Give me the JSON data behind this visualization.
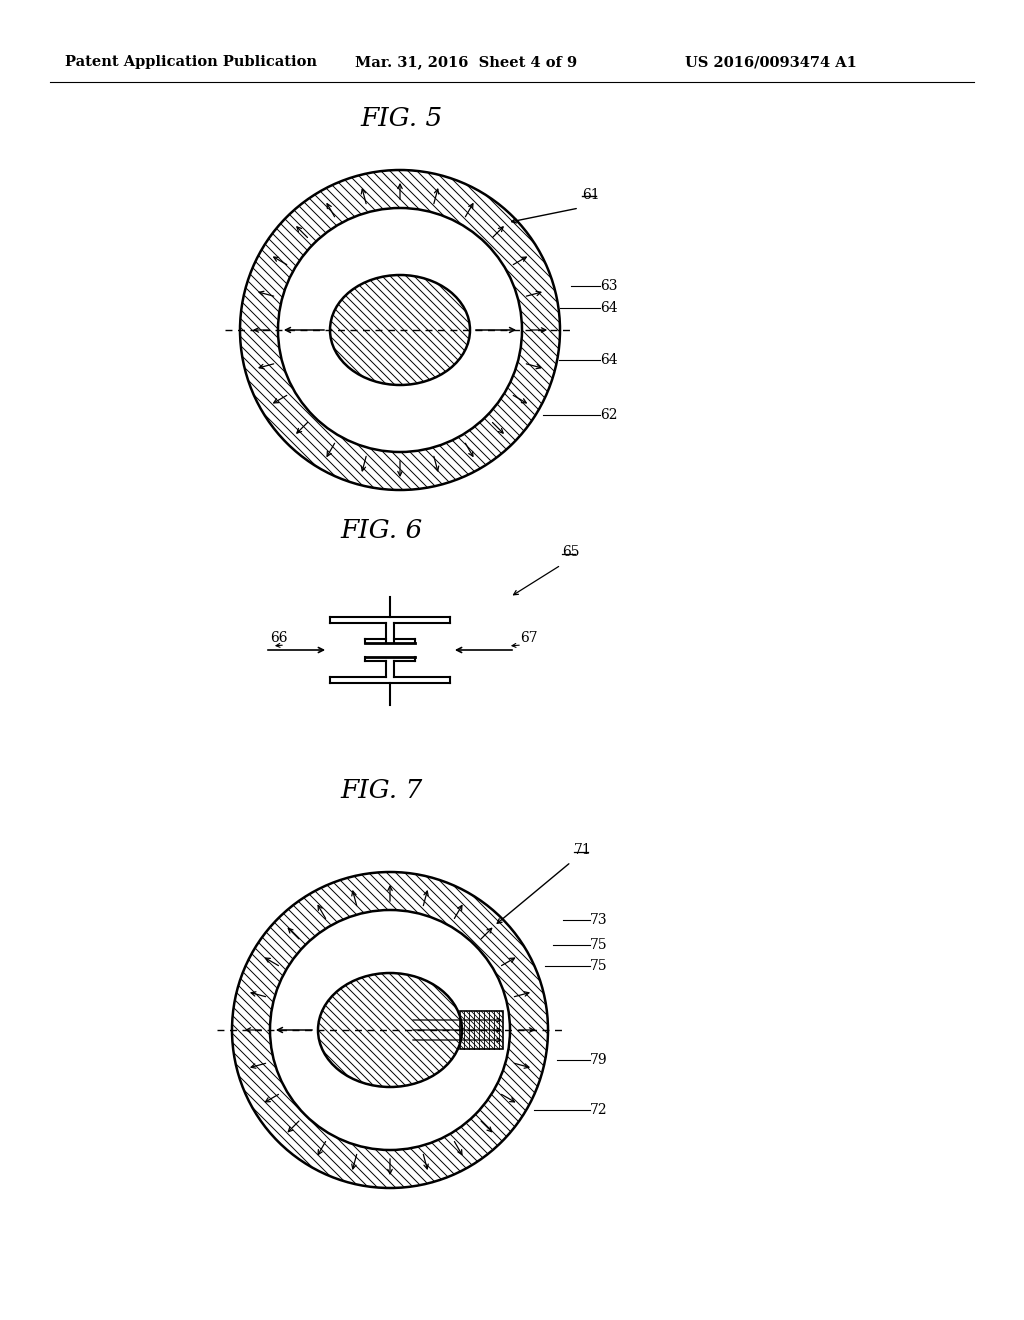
{
  "background_color": "#ffffff",
  "header_left": "Patent Application Publication",
  "header_mid": "Mar. 31, 2016  Sheet 4 of 9",
  "header_right": "US 2016/0093474 A1",
  "fig5_title": "FIG. 5",
  "fig6_title": "FIG. 6",
  "fig7_title": "FIG. 7",
  "label_61": "61",
  "label_62": "62",
  "label_63": "63",
  "label_64": "64",
  "label_65": "65",
  "label_66": "66",
  "label_67": "67",
  "label_71": "71",
  "label_72": "72",
  "label_73": "73",
  "label_75": "75",
  "label_79": "79",
  "line_color": "#000000"
}
